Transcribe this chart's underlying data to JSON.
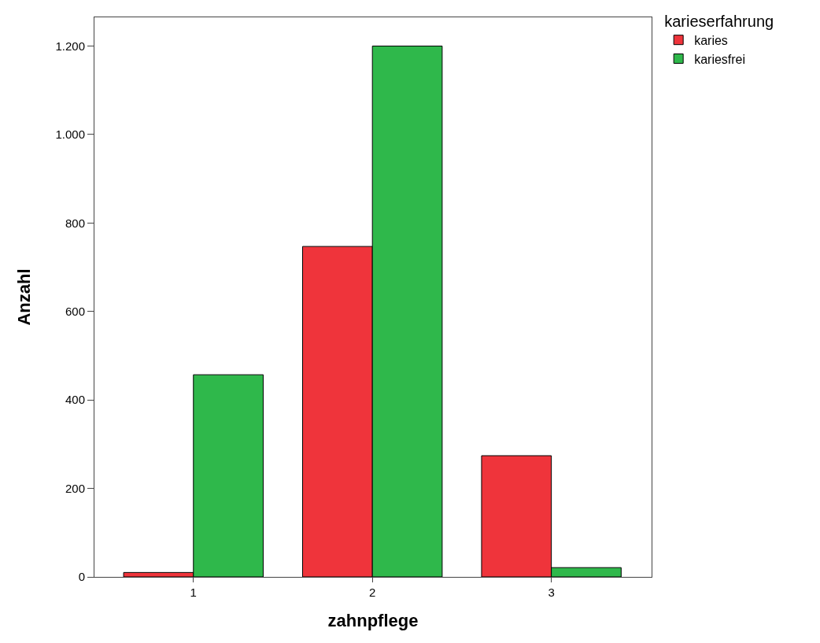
{
  "chart_data": {
    "type": "bar",
    "xlabel": "zahnpflege",
    "ylabel": "Anzahl",
    "legend_title": "karieserfahrung",
    "legend": "top right",
    "grid": false,
    "categories": [
      "1",
      "2",
      "3"
    ],
    "series": [
      {
        "name": "karies",
        "color": "#ef343b",
        "values": [
          10,
          747,
          274
        ]
      },
      {
        "name": "kariesfrei",
        "color": "#2fb84b",
        "values": [
          457,
          1200,
          21
        ]
      }
    ],
    "ylim": [
      0,
      1265
    ],
    "yticks": [
      0,
      200,
      400,
      600,
      800,
      {
        "value": 1000,
        "label": "1.000"
      },
      {
        "value": 1200,
        "label": "1.200"
      }
    ]
  }
}
